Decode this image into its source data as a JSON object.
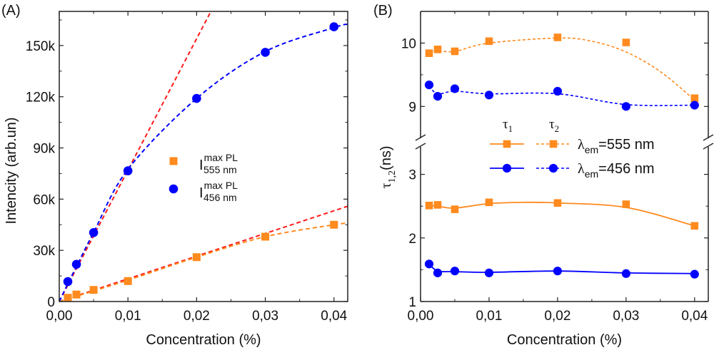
{
  "colors": {
    "orange": "#ff8a1e",
    "blue": "#0000ff",
    "red": "#ff1a1a",
    "axis": "#222222"
  },
  "chart_data": [
    {
      "panel_label": "(A)",
      "type": "scatter",
      "xlabel": "Concentration (%)",
      "ylabel": "Intencity (arb.un)",
      "xlim": [
        0,
        0.042
      ],
      "ylim": [
        0,
        170000
      ],
      "xticks": [
        0,
        0.01,
        0.02,
        0.03,
        0.04
      ],
      "xtick_labels": [
        "0,00",
        "0,01",
        "0,02",
        "0,03",
        "0,04"
      ],
      "yticks": [
        0,
        30000,
        60000,
        90000,
        120000,
        150000
      ],
      "ytick_labels": [
        "0",
        "30k",
        "60k",
        "90k",
        "120k",
        "150k"
      ],
      "grid": false,
      "legend_placement": "center",
      "series": [
        {
          "legend_main": "I",
          "legend_sup": "max PL",
          "legend_sub": "555 nm",
          "marker": "square",
          "color": "orange",
          "x": [
            0.00125,
            0.0025,
            0.005,
            0.01,
            0.02,
            0.03,
            0.04
          ],
          "y": [
            2200,
            4100,
            6800,
            12000,
            26000,
            38000,
            45000
          ],
          "fit": [
            [
              0,
              0
            ],
            [
              0.01,
              12500
            ],
            [
              0.02,
              26000
            ],
            [
              0.03,
              38000
            ],
            [
              0.04,
              45000
            ],
            [
              0.042,
              45800
            ]
          ]
        },
        {
          "legend_main": "I",
          "legend_sup": "max PL",
          "legend_sub": "456 nm",
          "marker": "circle",
          "color": "blue",
          "x": [
            0.00125,
            0.0025,
            0.005,
            0.01,
            0.02,
            0.03,
            0.04
          ],
          "y": [
            11700,
            21800,
            40400,
            76600,
            119000,
            146000,
            161000
          ],
          "fit": [
            [
              0,
              0
            ],
            [
              0.00125,
              10500
            ],
            [
              0.0025,
              20500
            ],
            [
              0.005,
              40400
            ],
            [
              0.01,
              77500
            ],
            [
              0.02,
              119000
            ],
            [
              0.03,
              146500
            ],
            [
              0.04,
              160500
            ],
            [
              0.042,
              162500
            ]
          ]
        }
      ],
      "linear_fits": [
        {
          "color": "red",
          "slope": 7700000
        },
        {
          "color": "red",
          "slope": 1330000
        }
      ]
    },
    {
      "panel_label": "(B)",
      "type": "line",
      "xlabel": "Concentration (%)",
      "ylabel_main": "τ",
      "ylabel_sub": "1,2",
      "ylabel_unit": "(ns)",
      "xlim": [
        0,
        0.042
      ],
      "ylim_lower": [
        1,
        3.5
      ],
      "ylim_upper": [
        8.43,
        10.5
      ],
      "axis_break": true,
      "xticks": [
        0,
        0.01,
        0.02,
        0.03,
        0.04
      ],
      "xtick_labels": [
        "0,00",
        "0,01",
        "0,02",
        "0,03",
        "0,04"
      ],
      "yticks": [
        1,
        2,
        3,
        9,
        10
      ],
      "ytick_labels": [
        "1",
        "2",
        "3",
        "9",
        "10"
      ],
      "grid": false,
      "legend_placement": "center",
      "legend_header": {
        "tau1_main": "τ",
        "tau1_sub": "1",
        "tau2_main": "τ",
        "tau2_sub": "2"
      },
      "legend_rows": [
        {
          "lambda": "λ",
          "sub": "em",
          "text": "=555 nm",
          "color": "orange",
          "marker": "square"
        },
        {
          "lambda": "λ",
          "sub": "em",
          "text": "=456 nm",
          "color": "blue",
          "marker": "circle"
        }
      ],
      "x": [
        0.00125,
        0.0025,
        0.005,
        0.01,
        0.02,
        0.03,
        0.04
      ],
      "series": [
        {
          "color": "orange",
          "marker": "square",
          "style": "solid",
          "y": [
            2.51,
            2.52,
            2.45,
            2.56,
            2.55,
            2.53,
            2.19
          ],
          "fit": [
            [
              0.00125,
              2.51
            ],
            [
              0.0025,
              2.5
            ],
            [
              0.005,
              2.47
            ],
            [
              0.01,
              2.54
            ],
            [
              0.015,
              2.56
            ],
            [
              0.02,
              2.55
            ],
            [
              0.03,
              2.48
            ],
            [
              0.04,
              2.19
            ]
          ]
        },
        {
          "color": "orange",
          "marker": "square",
          "style": "dashed",
          "y": [
            9.84,
            9.9,
            9.87,
            10.03,
            10.09,
            10.01,
            9.13
          ],
          "fit": [
            [
              0.00125,
              9.85
            ],
            [
              0.0025,
              9.88
            ],
            [
              0.005,
              9.87
            ],
            [
              0.01,
              10.0
            ],
            [
              0.02,
              10.08
            ],
            [
              0.025,
              10.03
            ],
            [
              0.03,
              9.86
            ],
            [
              0.035,
              9.55
            ],
            [
              0.04,
              9.1
            ]
          ]
        },
        {
          "color": "blue",
          "marker": "circle",
          "style": "solid",
          "y": [
            1.59,
            1.45,
            1.48,
            1.45,
            1.48,
            1.44,
            1.43
          ],
          "fit": [
            [
              0.00125,
              1.59
            ],
            [
              0.0025,
              1.48
            ],
            [
              0.005,
              1.47
            ],
            [
              0.01,
              1.46
            ],
            [
              0.02,
              1.48
            ],
            [
              0.03,
              1.45
            ],
            [
              0.04,
              1.44
            ]
          ]
        },
        {
          "color": "blue",
          "marker": "circle",
          "style": "dashed",
          "y": [
            9.34,
            9.16,
            9.28,
            9.18,
            9.24,
            9.0,
            9.02
          ],
          "fit": [
            [
              0.00125,
              9.32
            ],
            [
              0.0025,
              9.2
            ],
            [
              0.005,
              9.24
            ],
            [
              0.01,
              9.2
            ],
            [
              0.02,
              9.2
            ],
            [
              0.03,
              9.03
            ],
            [
              0.04,
              9.02
            ]
          ]
        }
      ]
    }
  ]
}
